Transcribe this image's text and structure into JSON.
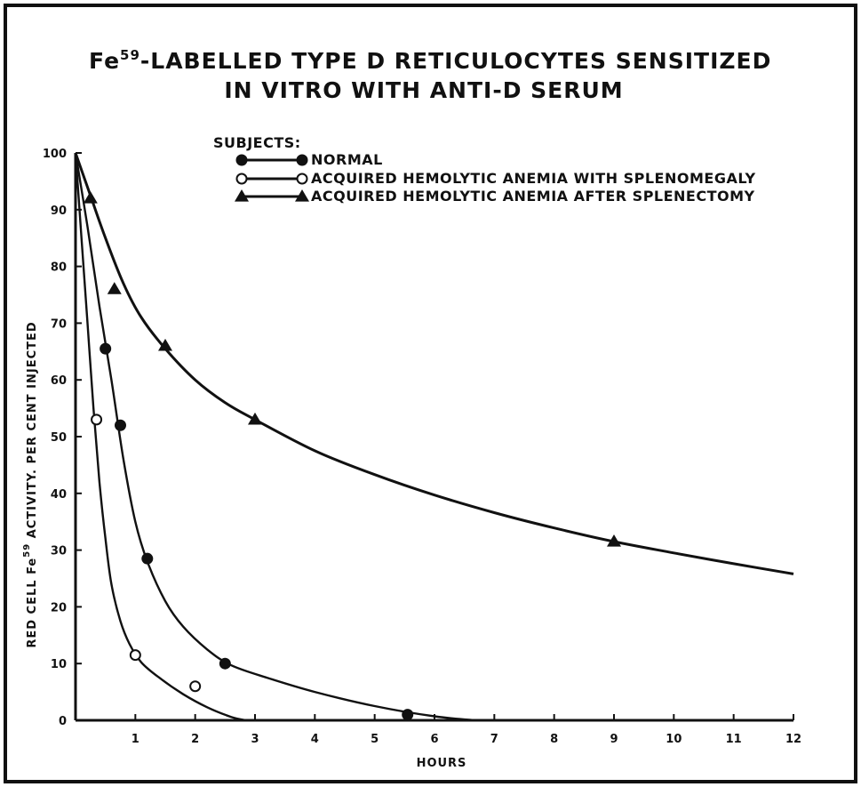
{
  "chart_data": {
    "type": "scatter",
    "title_line1": "-LABELLED TYPE D RETICULOCYTES SENSITIZED",
    "title_prefix": "Fe",
    "title_sup": "59",
    "title_line2": "IN VITRO WITH ANTI-D SERUM",
    "legend_heading": "SUBJECTS:",
    "xlabel": "HOURS",
    "ylabel_part1": "RED CELL Fe",
    "ylabel_sup": "59",
    "ylabel_part2": " ACTIVITY. PER CENT INJECTED",
    "xlim": [
      0,
      12
    ],
    "ylim": [
      0,
      100
    ],
    "x_ticks": [
      1,
      2,
      3,
      4,
      5,
      6,
      7,
      8,
      9,
      10,
      11,
      12
    ],
    "y_ticks": [
      0,
      10,
      20,
      30,
      40,
      50,
      60,
      70,
      80,
      90,
      100
    ],
    "grid": false,
    "legend_position": "top-right",
    "series": [
      {
        "name": "NORMAL",
        "marker": "filled-circle",
        "points": [
          [
            0.5,
            65.5
          ],
          [
            0.75,
            52
          ],
          [
            1.2,
            28.5
          ],
          [
            2.5,
            10
          ],
          [
            5.55,
            1
          ]
        ],
        "curve": [
          [
            0,
            100
          ],
          [
            0.2,
            87
          ],
          [
            0.4,
            73
          ],
          [
            0.6,
            60
          ],
          [
            0.8,
            46
          ],
          [
            1.0,
            35
          ],
          [
            1.2,
            28
          ],
          [
            1.5,
            21
          ],
          [
            1.8,
            16.5
          ],
          [
            2.2,
            12.5
          ],
          [
            2.6,
            9.7
          ],
          [
            3.2,
            7.5
          ],
          [
            4.0,
            5
          ],
          [
            5.0,
            2.5
          ],
          [
            6.0,
            0.7
          ],
          [
            6.7,
            0
          ]
        ]
      },
      {
        "name": "ACQUIRED HEMOLYTIC ANEMIA WITH SPLENOMEGALY",
        "marker": "open-circle",
        "points": [
          [
            0.35,
            53
          ],
          [
            1.0,
            11.5
          ],
          [
            2.0,
            6
          ]
        ],
        "curve": [
          [
            0,
            100
          ],
          [
            0.1,
            85
          ],
          [
            0.2,
            70
          ],
          [
            0.3,
            55
          ],
          [
            0.4,
            42
          ],
          [
            0.5,
            32
          ],
          [
            0.6,
            24
          ],
          [
            0.75,
            17.5
          ],
          [
            0.9,
            13.5
          ],
          [
            1.1,
            10.2
          ],
          [
            1.4,
            7.5
          ],
          [
            1.8,
            4.6
          ],
          [
            2.2,
            2.3
          ],
          [
            2.6,
            0.6
          ],
          [
            2.85,
            0
          ]
        ]
      },
      {
        "name": "ACQUIRED HEMOLYTIC ANEMIA AFTER SPLENECTOMY",
        "marker": "filled-triangle",
        "points": [
          [
            0.25,
            92
          ],
          [
            0.65,
            76
          ],
          [
            1.5,
            66
          ],
          [
            3.0,
            53
          ],
          [
            9.0,
            31.5
          ]
        ],
        "curve": [
          [
            0,
            100
          ],
          [
            0.25,
            92.5
          ],
          [
            0.5,
            85
          ],
          [
            0.8,
            77
          ],
          [
            1.1,
            71
          ],
          [
            1.5,
            65.5
          ],
          [
            2.0,
            60
          ],
          [
            2.5,
            56
          ],
          [
            3.0,
            53
          ],
          [
            4.0,
            47.5
          ],
          [
            5.0,
            43.3
          ],
          [
            6.0,
            39.7
          ],
          [
            7.0,
            36.6
          ],
          [
            8.0,
            33.9
          ],
          [
            9.0,
            31.5
          ],
          [
            10.0,
            29.5
          ],
          [
            11.0,
            27.6
          ],
          [
            12.0,
            25.8
          ]
        ]
      }
    ]
  }
}
